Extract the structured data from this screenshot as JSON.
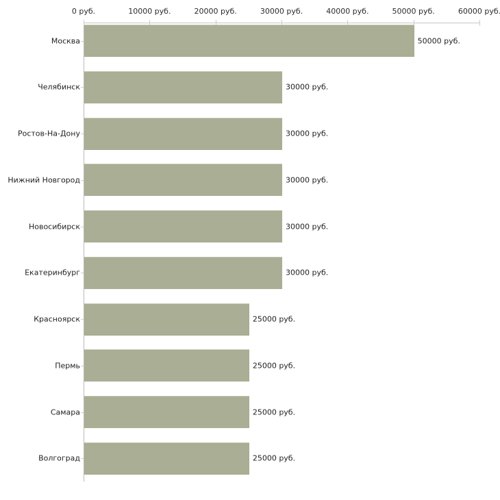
{
  "chart_data": {
    "type": "bar",
    "orientation": "horizontal",
    "title": "",
    "xlabel": "",
    "ylabel": "",
    "unit": "руб.",
    "categories": [
      "Москва",
      "Челябинск",
      "Ростов-На-Дону",
      "Нижний Новгород",
      "Новосибирск",
      "Екатеринбург",
      "Красноярск",
      "Пермь",
      "Самара",
      "Волгоград"
    ],
    "values": [
      50000,
      30000,
      30000,
      30000,
      30000,
      30000,
      25000,
      25000,
      25000,
      25000
    ],
    "value_labels": [
      "50000 руб.",
      "30000 руб.",
      "30000 руб.",
      "30000 руб.",
      "30000 руб.",
      "30000 руб.",
      "25000 руб.",
      "25000 руб.",
      "25000 руб.",
      "25000 руб."
    ],
    "x_ticks": [
      {
        "value": 0,
        "label": "0 руб."
      },
      {
        "value": 10000,
        "label": "10000 руб."
      },
      {
        "value": 20000,
        "label": "20000 руб."
      },
      {
        "value": 30000,
        "label": "30000 руб."
      },
      {
        "value": 40000,
        "label": "40000 руб."
      },
      {
        "value": 50000,
        "label": "50000 руб."
      },
      {
        "value": 60000,
        "label": "60000 руб."
      }
    ],
    "xlim": [
      0,
      60000
    ],
    "grid": false,
    "legend": null,
    "colors": {
      "bar": "#a9ae94",
      "bar_top_edge": "#c0c4ae",
      "axis_line": "#c6c6c6",
      "tick_mark": "#cbcfb6",
      "text": "#1f1f1f"
    }
  }
}
